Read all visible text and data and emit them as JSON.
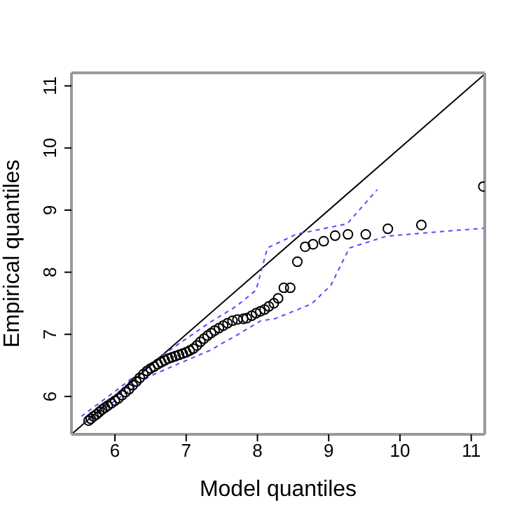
{
  "chart_data": {
    "type": "scatter",
    "xlabel": "Model quantiles",
    "ylabel": "Empirical quantiles",
    "xlim": [
      5.39,
      11.19
    ],
    "ylim": [
      5.39,
      11.21
    ],
    "xticks": [
      6,
      7,
      8,
      9,
      10,
      11
    ],
    "yticks": [
      6,
      7,
      8,
      9,
      10,
      11
    ],
    "legend": false,
    "series": [
      {
        "type": "scatter",
        "marker": "circle",
        "color": "#000000",
        "x": [
          5.63,
          5.66,
          5.7,
          5.74,
          5.78,
          5.82,
          5.86,
          5.9,
          5.95,
          6.0,
          6.05,
          6.1,
          6.15,
          6.2,
          6.25,
          6.3,
          6.35,
          6.4,
          6.45,
          6.5,
          6.55,
          6.6,
          6.65,
          6.7,
          6.75,
          6.8,
          6.85,
          6.9,
          6.95,
          7.0,
          7.05,
          7.1,
          7.15,
          7.2,
          7.25,
          7.3,
          7.35,
          7.4,
          7.46,
          7.52,
          7.58,
          7.65,
          7.72,
          7.8,
          7.85,
          7.92,
          7.98,
          8.04,
          8.1,
          8.16,
          8.23,
          8.29,
          8.37,
          8.46,
          8.56,
          8.67,
          8.78,
          8.93,
          9.09,
          9.27,
          9.52,
          9.83,
          10.3,
          11.17
        ],
        "values": [
          5.61,
          5.64,
          5.68,
          5.71,
          5.75,
          5.79,
          5.82,
          5.85,
          5.89,
          5.93,
          5.97,
          6.02,
          6.07,
          6.12,
          6.18,
          6.24,
          6.3,
          6.36,
          6.41,
          6.45,
          6.48,
          6.52,
          6.55,
          6.58,
          6.61,
          6.63,
          6.65,
          6.67,
          6.69,
          6.71,
          6.74,
          6.77,
          6.82,
          6.88,
          6.93,
          6.98,
          7.02,
          7.06,
          7.1,
          7.14,
          7.18,
          7.22,
          7.24,
          7.25,
          7.26,
          7.3,
          7.34,
          7.37,
          7.4,
          7.45,
          7.5,
          7.58,
          7.75,
          7.75,
          8.17,
          8.41,
          8.45,
          8.5,
          8.59,
          8.61,
          8.61,
          8.7,
          8.76,
          9.38
        ]
      },
      {
        "type": "line",
        "marker": "none",
        "line_style": "solid",
        "color": "#000000",
        "x": [
          5.39,
          11.19
        ],
        "values": [
          5.39,
          11.19
        ]
      },
      {
        "type": "line",
        "marker": "none",
        "line_style": "dashed",
        "color": "#4d4dff",
        "x": [
          5.53,
          6.0,
          6.48,
          6.9,
          7.33,
          7.7,
          7.98,
          8.14,
          8.54,
          9.26,
          9.68
        ],
        "values": [
          5.68,
          6.08,
          6.51,
          6.85,
          7.19,
          7.45,
          7.71,
          8.39,
          8.61,
          8.78,
          9.33
        ]
      },
      {
        "type": "line",
        "marker": "none",
        "line_style": "dashed",
        "color": "#4d4dff",
        "x": [
          5.56,
          6.0,
          6.48,
          6.9,
          7.33,
          7.7,
          8.05,
          8.24,
          8.76,
          9.03,
          9.29,
          9.81,
          10.53,
          11.19
        ],
        "values": [
          5.57,
          5.93,
          6.32,
          6.53,
          6.74,
          6.98,
          7.22,
          7.25,
          7.49,
          7.79,
          8.39,
          8.58,
          8.65,
          8.71
        ]
      }
    ]
  }
}
